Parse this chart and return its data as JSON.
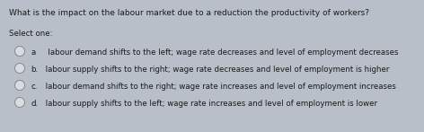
{
  "question": "What is the impact on the labour market due to a reduction the productivity of workers?",
  "select_one": "Select one:",
  "options": [
    {
      "label": "a",
      "text": "  labour demand shifts to the left; wage rate decreases and level of employment decreases"
    },
    {
      "label": "b.",
      "text": " labour supply shifts to the right; wage rate decreases and level of employment is higher"
    },
    {
      "label": "c.",
      "text": " labour demand shifts to the right; wage rate increases and level of employment increases"
    },
    {
      "label": "d.",
      "text": " labour supply shifts to the left; wage rate increases and level of employment is lower"
    }
  ],
  "bg_color": "#b8bfc8",
  "text_color": "#1a1a1a",
  "question_fontsize": 6.5,
  "select_fontsize": 6.2,
  "option_fontsize": 6.2,
  "circle_color": "#d8dde4",
  "circle_edge_color": "#888888"
}
